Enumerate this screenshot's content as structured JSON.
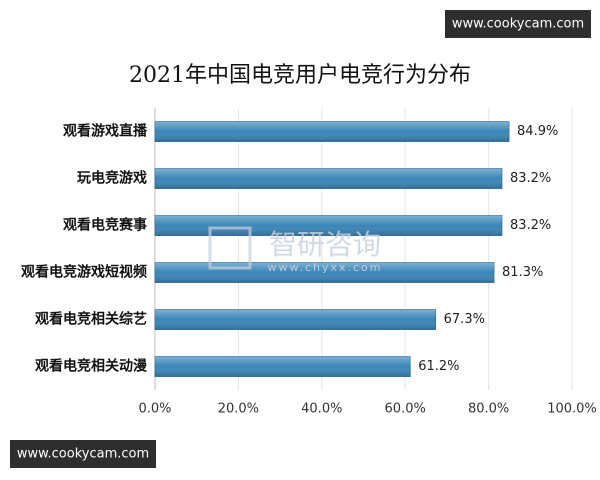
{
  "chart_data": {
    "type": "hbar",
    "title": "2021年中国电竞用户电竞行为分布",
    "categories": [
      "观看游戏直播",
      "玩电竞游戏",
      "观看电竞赛事",
      "观看电竞游戏短视频",
      "观看电竞相关综艺",
      "观看电竞相关动漫"
    ],
    "values": [
      84.9,
      83.2,
      83.2,
      81.3,
      67.3,
      61.2
    ],
    "value_labels": [
      "84.9%",
      "83.2%",
      "83.2%",
      "81.3%",
      "67.3%",
      "61.2%"
    ],
    "color": "#3a86b8",
    "xlim": [
      0,
      100
    ],
    "xticks": [
      {
        "value": 0,
        "label": "0.0%"
      },
      {
        "value": 20,
        "label": "20.0%"
      },
      {
        "value": 40,
        "label": "40.0%"
      },
      {
        "value": 60,
        "label": "60.0%"
      },
      {
        "value": 80,
        "label": "80.0%"
      },
      {
        "value": 100,
        "label": "100.0%"
      }
    ],
    "grid": true
  },
  "watermarks": {
    "top": "www.cookycam.com",
    "bottom": "www.cookycam.com",
    "brand": "智研咨询",
    "brand_url": "www.chyxx.com"
  }
}
